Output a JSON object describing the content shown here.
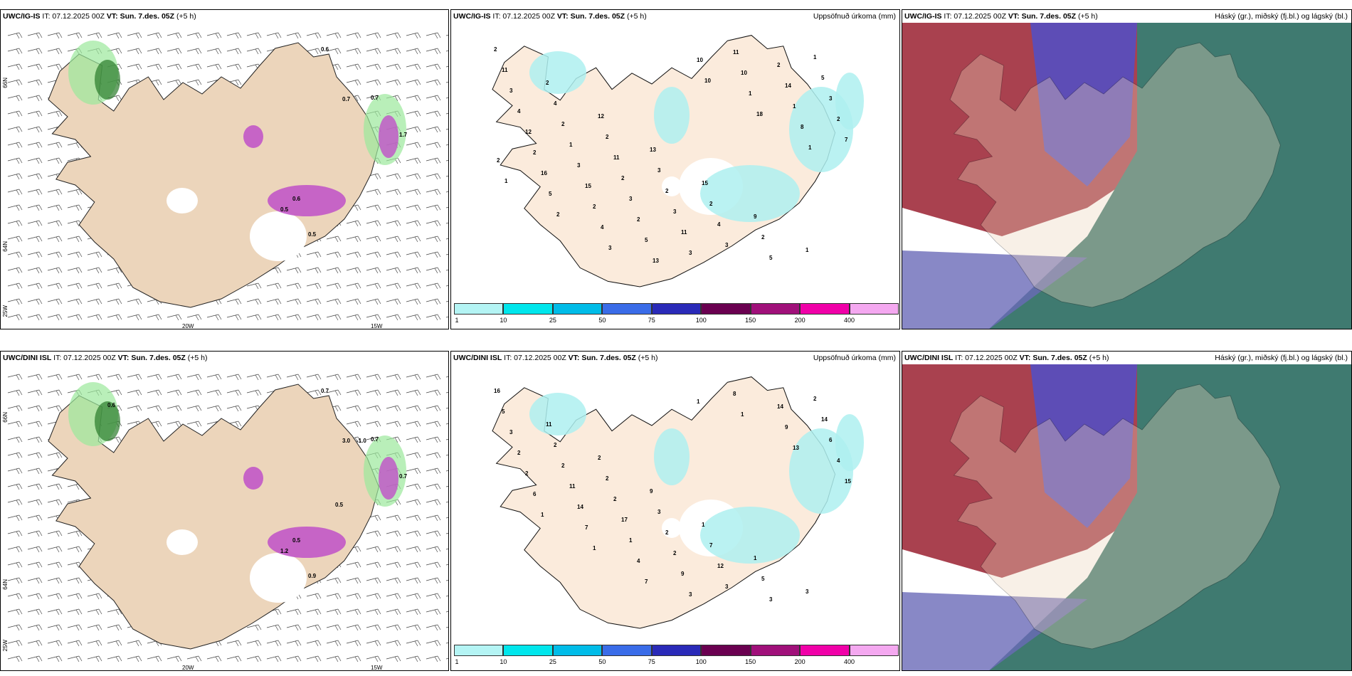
{
  "panels": [
    {
      "model": "UWC/IG-IS",
      "it": "IT: 07.12.2025 00Z",
      "vt_label": "VT:",
      "vt": "Sun. 7.des. 05Z",
      "lead": "(+5 h)",
      "right": ""
    },
    {
      "model": "UWC/IG-IS",
      "it": "IT: 07.12.2025 00Z",
      "vt_label": "VT:",
      "vt": "Sun. 7.des. 05Z",
      "lead": "(+5 h)",
      "right": "Uppsöfnuð úrkoma (mm)"
    },
    {
      "model": "UWC/IG-IS",
      "it": "IT: 07.12.2025 00Z",
      "vt_label": "VT:",
      "vt": "Sun. 7.des. 05Z",
      "lead": "(+5 h)",
      "right": "Háský (gr.), miðský (fj.bl.) og lágský (bl.)"
    },
    {
      "model": "UWC/DINI ISL",
      "it": "IT: 07.12.2025 00Z",
      "vt_label": "VT:",
      "vt": "Sun. 7.des. 05Z",
      "lead": "(+5 h)",
      "right": ""
    },
    {
      "model": "UWC/DINI ISL",
      "it": "IT: 07.12.2025 00Z",
      "vt_label": "VT:",
      "vt": "Sun. 7.des. 05Z",
      "lead": "(+5 h)",
      "right": "Uppsöfnuð úrkoma (mm)"
    },
    {
      "model": "UWC/DINI ISL",
      "it": "IT: 07.12.2025 00Z",
      "vt_label": "VT:",
      "vt": "Sun. 7.des. 05Z",
      "lead": "(+5 h)",
      "right": "Háský (gr.), miðský (fj.bl.) og lágský (bl.)"
    }
  ],
  "axes": {
    "lat66": "66N",
    "lat64": "64N",
    "lon25": "25W",
    "lon20": "20W",
    "lon15": "15W"
  },
  "legend": {
    "ticks": [
      "1",
      "10",
      "25",
      "50",
      "75",
      "100",
      "150",
      "200",
      "400"
    ],
    "colors": [
      "#b4f4f4",
      "#00e6ec",
      "#00bce8",
      "#3a6ce8",
      "#2a2ab8",
      "#6a0050",
      "#a0107a",
      "#f000a8",
      "#f4a8f0"
    ]
  },
  "precip_labels_top": [
    "2",
    "2",
    "12",
    "13",
    "15",
    "9",
    "1",
    "11",
    "4",
    "2",
    "3",
    "2",
    "2",
    "1",
    "3",
    "2",
    "11",
    "2",
    "4",
    "5",
    "5",
    "4",
    "1",
    "2",
    "3",
    "3",
    "2",
    "3",
    "12",
    "3",
    "3",
    "11",
    "11",
    "14",
    "2",
    "2",
    "15",
    "2",
    "3",
    "10",
    "1",
    "7",
    "16",
    "2",
    "5",
    "10",
    "1",
    "8",
    "2",
    "5",
    "4",
    "13",
    "10",
    "18",
    "1",
    "1",
    "2",
    "3"
  ],
  "precip_labels_bot": [
    "16",
    "11",
    "2",
    "9",
    "1",
    "1",
    "3",
    "5",
    "2",
    "2",
    "3",
    "7",
    "5",
    "2",
    "3",
    "2",
    "2",
    "2",
    "12",
    "3",
    "14",
    "2",
    "11",
    "17",
    "2",
    "3",
    "14",
    "6",
    "2",
    "14",
    "1",
    "9",
    "8",
    "9",
    "4",
    "6",
    "7",
    "4",
    "3",
    "1",
    "13",
    "15",
    "1",
    "1",
    "7",
    "1"
  ],
  "snow_labels_top": [
    "0.6",
    "0.7",
    "0.5",
    "0.5",
    "0.6",
    "0.7",
    "1.7"
  ],
  "snow_labels_bot": [
    "0.7",
    "0.7",
    "1.2",
    "0.9",
    "0.5",
    "3.0",
    "0.7",
    "0.6",
    "-1.0",
    "0.5"
  ]
}
